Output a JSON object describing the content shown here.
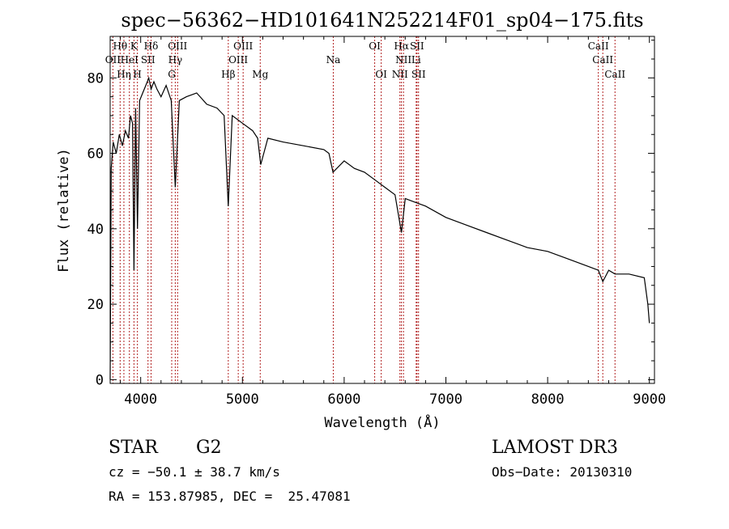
{
  "chart_data": {
    "type": "line",
    "title": "spec−56362−HD101641N252214F01_sp04−175.fits",
    "xlabel": "Wavelength (Å)",
    "ylabel": "Flux (relative)",
    "xlim": [
      3700,
      9050
    ],
    "ylim": [
      -1,
      91
    ],
    "xticks": [
      4000,
      5000,
      6000,
      7000,
      8000,
      9000
    ],
    "yticks": [
      0,
      20,
      40,
      60,
      80
    ],
    "xtick_labels": [
      "4000",
      "5000",
      "6000",
      "7000",
      "8000",
      "9000"
    ],
    "ytick_labels": [
      "0",
      "20",
      "40",
      "60",
      "80"
    ],
    "grid": false,
    "series": [
      {
        "name": "spectrum",
        "x": [
          3700,
          3710,
          3730,
          3760,
          3790,
          3820,
          3850,
          3880,
          3900,
          3920,
          3934,
          3950,
          3968,
          3990,
          4020,
          4050,
          4080,
          4102,
          4130,
          4160,
          4200,
          4250,
          4300,
          4340,
          4380,
          4450,
          4550,
          4650,
          4750,
          4820,
          4861,
          4900,
          5000,
          5100,
          5150,
          5180,
          5250,
          5400,
          5600,
          5800,
          5850,
          5890,
          6000,
          6100,
          6200,
          6300,
          6400,
          6500,
          6563,
          6600,
          6700,
          6800,
          7000,
          7200,
          7400,
          7600,
          7800,
          8000,
          8200,
          8400,
          8498,
          8542,
          8600,
          8662,
          8800,
          8950,
          8985,
          9000
        ],
        "y": [
          0,
          56,
          63,
          60,
          65,
          62,
          66,
          64,
          70,
          68,
          29,
          72,
          40,
          74,
          76,
          78,
          80,
          77,
          79,
          77,
          75,
          78,
          74,
          51,
          74,
          75,
          76,
          73,
          72,
          70,
          46,
          70,
          68,
          66,
          64,
          57,
          64,
          63,
          62,
          61,
          60,
          55,
          58,
          56,
          55,
          53,
          51,
          49,
          39,
          48,
          47,
          46,
          43,
          41,
          39,
          37,
          35,
          34,
          32,
          30,
          29,
          26,
          29,
          28,
          28,
          27,
          20,
          15
        ]
      }
    ],
    "lines": [
      {
        "label": "Hθ",
        "wavelength": 3798,
        "row": 1
      },
      {
        "label": "K",
        "wavelength": 3934,
        "row": 1
      },
      {
        "label": "Hδ",
        "wavelength": 4102,
        "row": 1
      },
      {
        "label": "OIII",
        "wavelength": 4363,
        "row": 1
      },
      {
        "label": "OIII",
        "wavelength": 5007,
        "row": 1
      },
      {
        "label": "OI",
        "wavelength": 6300,
        "row": 1
      },
      {
        "label": "Hα",
        "wavelength": 6563,
        "row": 1
      },
      {
        "label": "SII",
        "wavelength": 6716,
        "row": 1
      },
      {
        "label": "CaII",
        "wavelength": 8498,
        "row": 1
      },
      {
        "label": "OII",
        "wavelength": 3727,
        "row": 2
      },
      {
        "label": "HeI",
        "wavelength": 3889,
        "row": 2
      },
      {
        "label": "SII",
        "wavelength": 4072,
        "row": 2
      },
      {
        "label": "Hγ",
        "wavelength": 4340,
        "row": 2
      },
      {
        "label": "OIII",
        "wavelength": 4959,
        "row": 2
      },
      {
        "label": "Na",
        "wavelength": 5893,
        "row": 2
      },
      {
        "label": "NII",
        "wavelength": 6583,
        "row": 2
      },
      {
        "label": "Li",
        "wavelength": 6708,
        "row": 2
      },
      {
        "label": "CaII",
        "wavelength": 8542,
        "row": 2
      },
      {
        "label": "Hη",
        "wavelength": 3835,
        "row": 3
      },
      {
        "label": "H",
        "wavelength": 3968,
        "row": 3
      },
      {
        "label": "G",
        "wavelength": 4305,
        "row": 3
      },
      {
        "label": "Hβ",
        "wavelength": 4861,
        "row": 3
      },
      {
        "label": "Mg",
        "wavelength": 5175,
        "row": 3
      },
      {
        "label": "OI",
        "wavelength": 6364,
        "row": 3
      },
      {
        "label": "NII",
        "wavelength": 6548,
        "row": 3
      },
      {
        "label": "SII",
        "wavelength": 6731,
        "row": 3
      },
      {
        "label": "CaII",
        "wavelength": 8662,
        "row": 3
      }
    ]
  },
  "info": {
    "object_class": "STAR",
    "subclass": "G2",
    "redshift": "cz = −50.1 ± 38.7 km/s",
    "coords": "RA = 153.87985, DEC =  25.47081",
    "survey": "LAMOST DR3",
    "obs_date": "Obs−Date: 20130310"
  },
  "colors": {
    "line_marker": "#b22222",
    "spectrum": "#000000",
    "axes": "#000000"
  }
}
